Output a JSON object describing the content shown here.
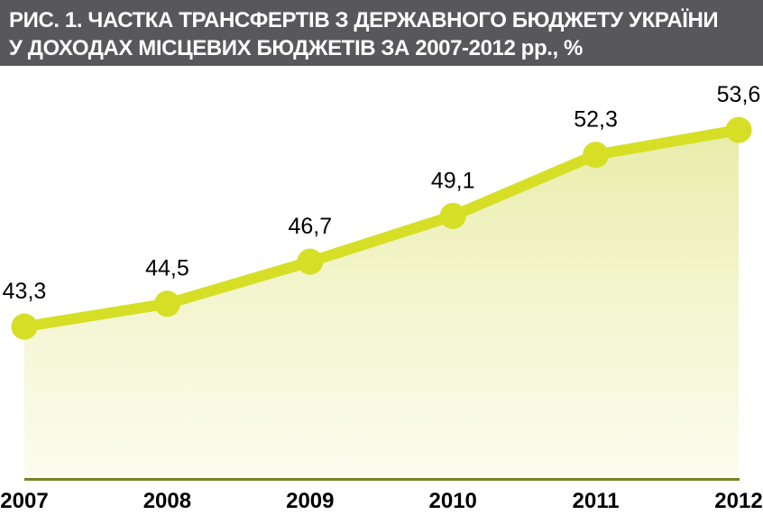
{
  "header": {
    "title_line1": "РИС. 1. ЧАСТКА ТРАНСФЕРТІВ З ДЕРЖАВНОГО БЮДЖЕТУ УКРАЇНИ",
    "title_line2": "У ДОХОДАХ МІСЦЕВИХ БЮДЖЕТІВ ЗА 2007-2012 рр., %",
    "bg_color": "#58585a",
    "text_color": "#ffffff"
  },
  "chart_data": {
    "type": "area",
    "title": "Частка трансфертів з державного бюджету України у доходах місцевих бюджетів за 2007-2012 рр., %",
    "categories": [
      "2007",
      "2008",
      "2009",
      "2010",
      "2011",
      "2012"
    ],
    "values": [
      43.3,
      44.5,
      46.7,
      49.1,
      52.3,
      53.6
    ],
    "point_labels": [
      "43,3",
      "44,5",
      "46,7",
      "49,1",
      "52,3",
      "53,6"
    ],
    "xlabel": "",
    "ylabel": "",
    "unit": "%",
    "ylim": [
      35.3,
      55
    ],
    "grid": false,
    "legend": false,
    "colors": {
      "line": "#d6df25",
      "marker": "#d6df25",
      "area_top": "#e9edaa",
      "area_mid": "#f3f5cd",
      "area_bottom": "#fcfcef",
      "axis": "#798126",
      "point_label": "#000000",
      "tick_label": "#000000"
    }
  }
}
